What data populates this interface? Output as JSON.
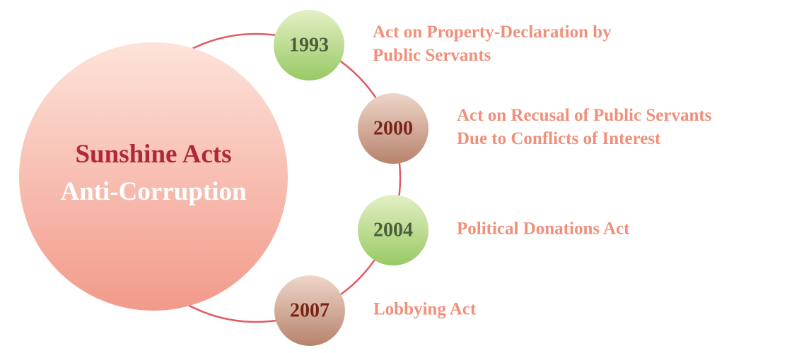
{
  "center": {
    "title": "Sunshine Acts",
    "subtitle": "Anti-Corruption"
  },
  "events": [
    {
      "year": "1993",
      "label": [
        "Act on Property-Declaration by",
        "Public Servants"
      ]
    },
    {
      "year": "2000",
      "label": [
        "Act on Recusal of Public Servants",
        "Due to Conflicts of Interest"
      ]
    },
    {
      "year": "2004",
      "label": [
        "Political Donations Act"
      ]
    },
    {
      "year": "2007",
      "label": [
        "Lobbying Act"
      ]
    }
  ]
}
